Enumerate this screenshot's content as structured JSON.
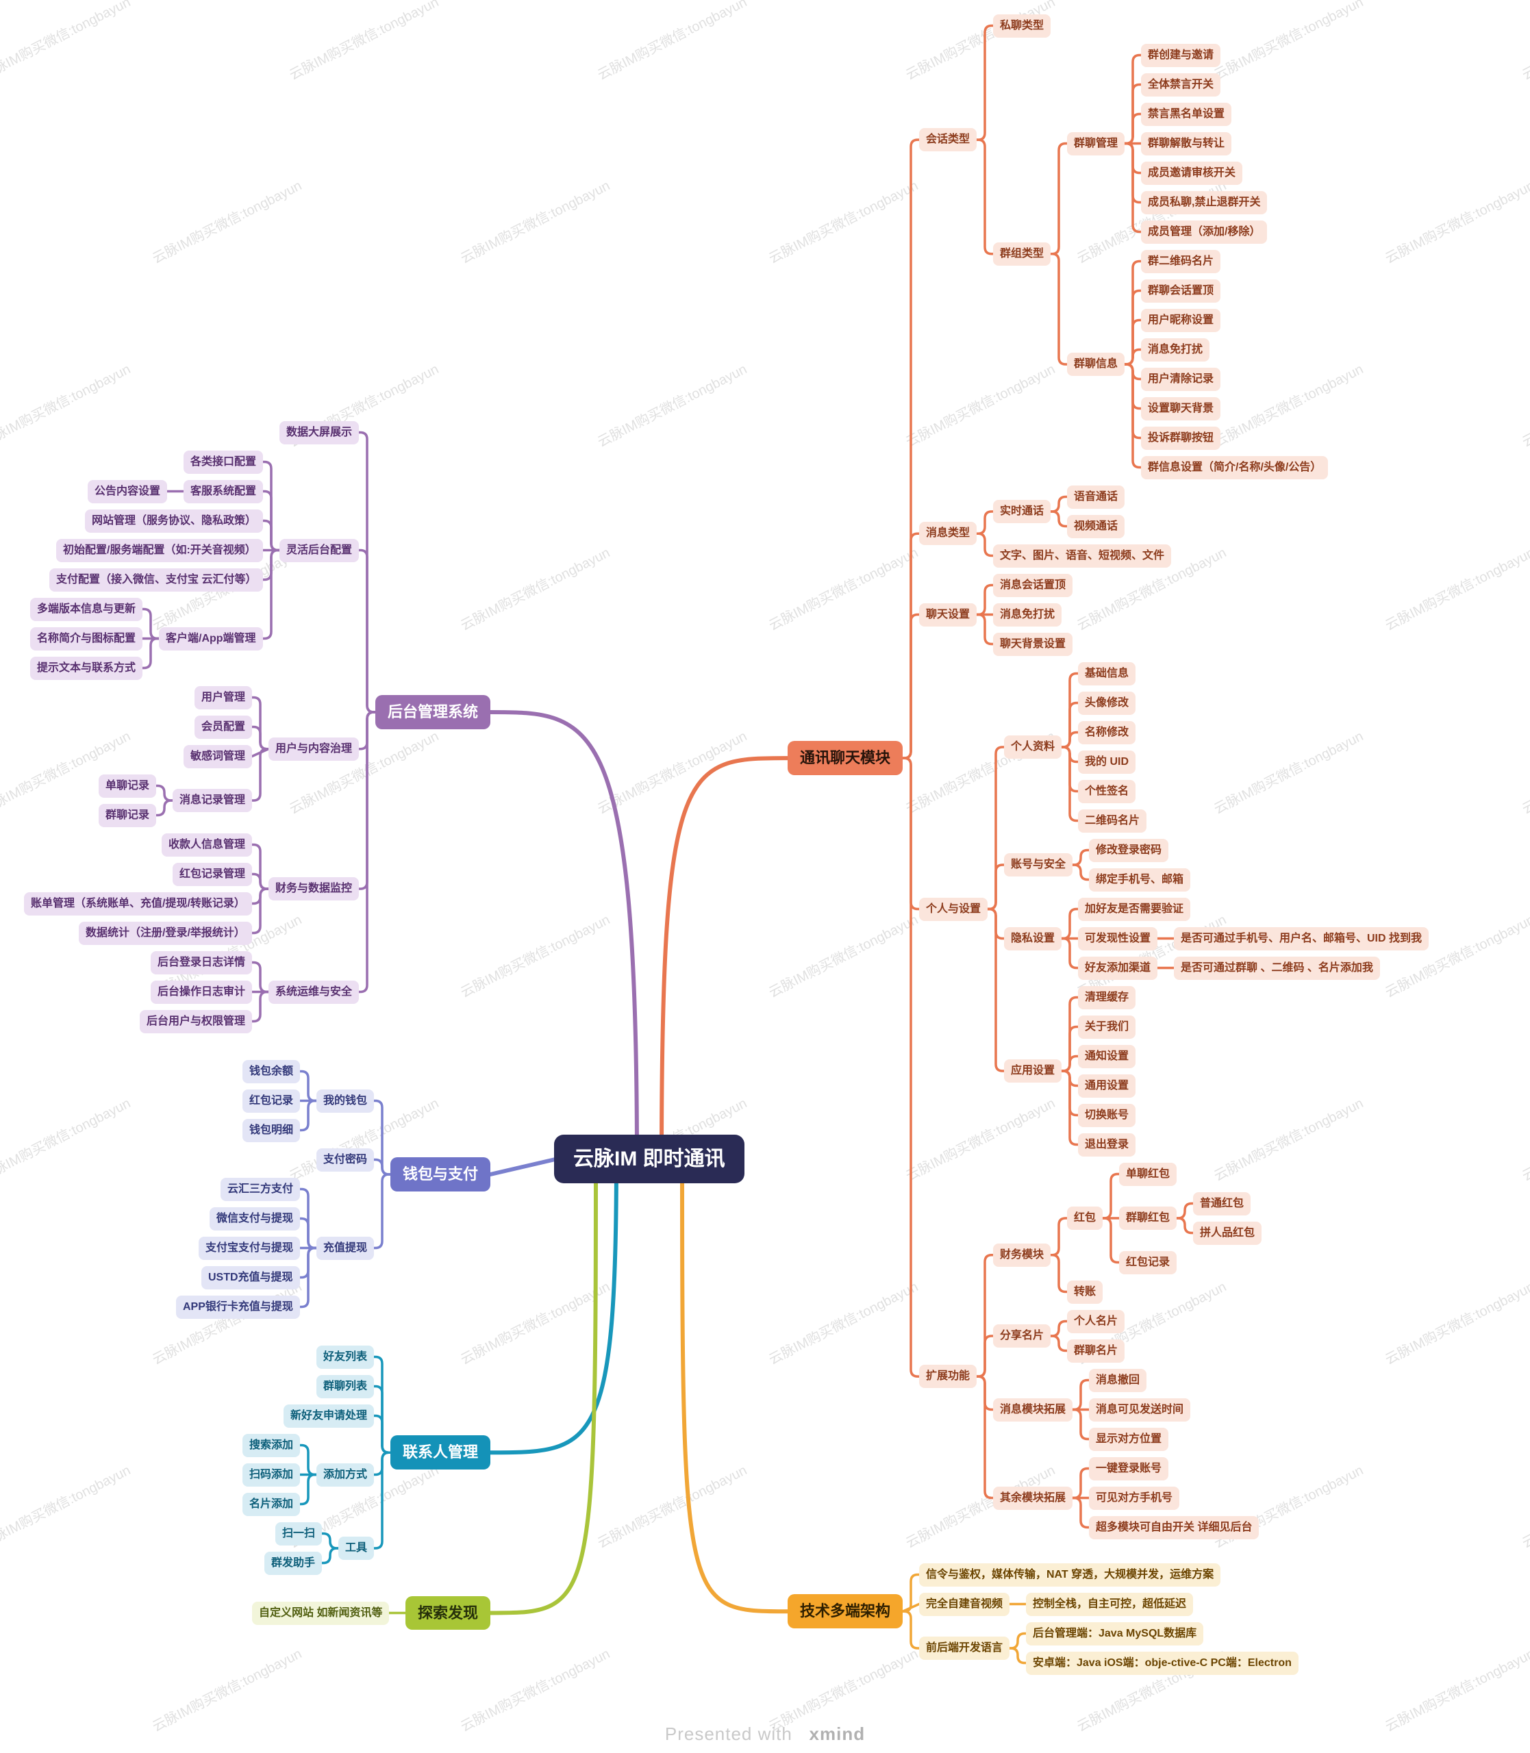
{
  "root": {
    "label": "云脉IM 即时通讯",
    "bg": "#2A2B55",
    "text": "#FFFFFF"
  },
  "watermark": {
    "text": "云脉IM购买微信:tongbayun"
  },
  "footer": {
    "presented_with": "Presented with",
    "brand": "xmind"
  },
  "branches": [
    {
      "label": "通讯聊天模块",
      "side": "right",
      "colors": {
        "line": "#E8764F",
        "node_bg": "#ED7D5A",
        "node_text": "#26130A",
        "leaf_bg": "#FBE5DC",
        "leaf_text": "#8C3B1C"
      },
      "children": [
        {
          "label": "会话类型",
          "children": [
            {
              "label": "私聊类型"
            },
            {
              "label": "群组类型",
              "children": [
                {
                  "label": "群聊管理",
                  "children": [
                    {
                      "label": "群创建与邀请"
                    },
                    {
                      "label": "全体禁言开关"
                    },
                    {
                      "label": "禁言黑名单设置"
                    },
                    {
                      "label": "群聊解散与转让"
                    },
                    {
                      "label": "成员邀请审核开关"
                    },
                    {
                      "label": "成员私聊,禁止退群开关"
                    },
                    {
                      "label": "成员管理（添加/移除）"
                    }
                  ]
                },
                {
                  "label": "群聊信息",
                  "children": [
                    {
                      "label": "群二维码名片"
                    },
                    {
                      "label": "群聊会话置顶"
                    },
                    {
                      "label": "用户昵称设置"
                    },
                    {
                      "label": "消息免打扰"
                    },
                    {
                      "label": "用户清除记录"
                    },
                    {
                      "label": "设置聊天背景"
                    },
                    {
                      "label": "投诉群聊按钮"
                    },
                    {
                      "label": "群信息设置（简介/名称/头像/公告）"
                    }
                  ]
                }
              ]
            }
          ]
        },
        {
          "label": "消息类型",
          "children": [
            {
              "label": "实时通话",
              "children": [
                {
                  "label": "语音通话"
                },
                {
                  "label": "视频通话"
                }
              ]
            },
            {
              "label": "文字、图片、语音、短视频、文件"
            }
          ]
        },
        {
          "label": "聊天设置",
          "children": [
            {
              "label": "消息会话置顶"
            },
            {
              "label": "消息免打扰"
            },
            {
              "label": "聊天背景设置"
            }
          ]
        },
        {
          "label": "个人与设置",
          "children": [
            {
              "label": "个人资料",
              "children": [
                {
                  "label": "基础信息"
                },
                {
                  "label": "头像修改"
                },
                {
                  "label": "名称修改"
                },
                {
                  "label": "我的 UID"
                },
                {
                  "label": "个性签名"
                },
                {
                  "label": "二维码名片"
                }
              ]
            },
            {
              "label": "账号与安全",
              "children": [
                {
                  "label": "修改登录密码"
                },
                {
                  "label": "绑定手机号、邮箱"
                }
              ]
            },
            {
              "label": "隐私设置",
              "children": [
                {
                  "label": "加好友是否需要验证"
                },
                {
                  "label": "可发现性设置",
                  "children": [
                    {
                      "label": "是否可通过手机号、用户名、邮箱号、UID 找到我"
                    }
                  ]
                },
                {
                  "label": "好友添加渠道",
                  "children": [
                    {
                      "label": "是否可通过群聊 、二维码 、名片添加我"
                    }
                  ]
                }
              ]
            },
            {
              "label": "应用设置",
              "children": [
                {
                  "label": "清理缓存"
                },
                {
                  "label": "关于我们"
                },
                {
                  "label": "通知设置"
                },
                {
                  "label": "通用设置"
                },
                {
                  "label": "切换账号"
                },
                {
                  "label": "退出登录"
                }
              ]
            }
          ]
        },
        {
          "label": "扩展功能",
          "children": [
            {
              "label": "财务模块",
              "children": [
                {
                  "label": "红包",
                  "children": [
                    {
                      "label": "单聊红包"
                    },
                    {
                      "label": "群聊红包",
                      "children": [
                        {
                          "label": "普通红包"
                        },
                        {
                          "label": "拼人品红包"
                        }
                      ]
                    },
                    {
                      "label": "红包记录"
                    }
                  ]
                },
                {
                  "label": "转账"
                }
              ]
            },
            {
              "label": "分享名片",
              "children": [
                {
                  "label": "个人名片"
                },
                {
                  "label": "群聊名片"
                }
              ]
            },
            {
              "label": "消息模块拓展",
              "children": [
                {
                  "label": "消息撤回"
                },
                {
                  "label": "消息可见发送时间"
                },
                {
                  "label": "显示对方位置"
                }
              ]
            },
            {
              "label": "其余模块拓展",
              "children": [
                {
                  "label": "一键登录账号"
                },
                {
                  "label": "可见对方手机号"
                },
                {
                  "label": "超多模块可自由开关 详细见后台"
                }
              ]
            }
          ]
        }
      ]
    },
    {
      "label": "技术多端架构",
      "side": "right",
      "colors": {
        "line": "#F1A636",
        "node_bg": "#F5A62B",
        "node_text": "#2E1F00",
        "leaf_bg": "#FBEFD4",
        "leaf_text": "#6B4400"
      },
      "children": [
        {
          "label": "信令与鉴权，媒体传输，NAT 穿透，大规模并发，运维方案"
        },
        {
          "label": "完全自建音视频",
          "children": [
            {
              "label": "控制全栈，自主可控，超低延迟"
            }
          ]
        },
        {
          "label": "前后端开发语言",
          "children": [
            {
              "label": "后台管理端：Java MySQL数据库"
            },
            {
              "label": "安卓端：Java iOS端：obje-ctive-C PC端：Electron"
            }
          ]
        }
      ]
    },
    {
      "label": "后台管理系统",
      "side": "left",
      "colors": {
        "line": "#9A6FB0",
        "node_bg": "#9A6FB0",
        "node_text": "#FFFFFF",
        "leaf_bg": "#ECDFF2",
        "leaf_text": "#58306F"
      },
      "children": [
        {
          "label": "数据大屏展示"
        },
        {
          "label": "灵活后台配置",
          "children": [
            {
              "label": "各类接口配置"
            },
            {
              "label": "客服系统配置",
              "children": [
                {
                  "label": "公告内容设置"
                }
              ]
            },
            {
              "label": "网站管理（服务协议、隐私政策）"
            },
            {
              "label": "初始配置/服务端配置（如:开关音视频）"
            },
            {
              "label": "支付配置（接入微信、支付宝 云汇付等）"
            },
            {
              "label": "客户端/App端管理",
              "children": [
                {
                  "label": "多端版本信息与更新"
                },
                {
                  "label": "名称简介与图标配置"
                },
                {
                  "label": "提示文本与联系方式"
                }
              ]
            }
          ]
        },
        {
          "label": "用户与内容治理",
          "children": [
            {
              "label": "用户管理"
            },
            {
              "label": "会员配置"
            },
            {
              "label": "敏感词管理"
            },
            {
              "label": "消息记录管理",
              "children": [
                {
                  "label": "单聊记录"
                },
                {
                  "label": "群聊记录"
                }
              ]
            }
          ]
        },
        {
          "label": "财务与数据监控",
          "children": [
            {
              "label": "收款人信息管理"
            },
            {
              "label": "红包记录管理"
            },
            {
              "label": "账单管理（系统账单、充值/提现/转账记录）"
            },
            {
              "label": "数据统计（注册/登录/举报统计）"
            }
          ]
        },
        {
          "label": "系统运维与安全",
          "children": [
            {
              "label": "后台登录日志详情"
            },
            {
              "label": "后台操作日志审计"
            },
            {
              "label": "后台用户与权限管理"
            }
          ]
        }
      ]
    },
    {
      "label": "钱包与支付",
      "side": "left",
      "colors": {
        "line": "#7A80CE",
        "node_bg": "#6F74C8",
        "node_text": "#FFFFFF",
        "leaf_bg": "#E3E5F6",
        "leaf_text": "#323879"
      },
      "children": [
        {
          "label": "我的钱包",
          "children": [
            {
              "label": "钱包余额"
            },
            {
              "label": "红包记录"
            },
            {
              "label": "钱包明细"
            }
          ]
        },
        {
          "label": "支付密码"
        },
        {
          "label": "充值提现",
          "children": [
            {
              "label": "云汇三方支付"
            },
            {
              "label": "微信支付与提现"
            },
            {
              "label": "支付宝支付与提现"
            },
            {
              "label": "USTD充值与提现"
            },
            {
              "label": "APP银行卡充值与提现"
            }
          ]
        }
      ]
    },
    {
      "label": "联系人管理",
      "side": "left",
      "colors": {
        "line": "#1897BB",
        "node_bg": "#1492B8",
        "node_text": "#FFFFFF",
        "leaf_bg": "#D7ECF4",
        "leaf_text": "#0C5E79"
      },
      "children": [
        {
          "label": "好友列表"
        },
        {
          "label": "群聊列表"
        },
        {
          "label": "新好友申请处理"
        },
        {
          "label": "添加方式",
          "children": [
            {
              "label": "搜索添加"
            },
            {
              "label": "扫码添加"
            },
            {
              "label": "名片添加"
            }
          ]
        },
        {
          "label": "工具",
          "children": [
            {
              "label": "扫一扫"
            },
            {
              "label": "群发助手"
            }
          ]
        }
      ]
    },
    {
      "label": "探索发现",
      "side": "left",
      "colors": {
        "line": "#A9C43A",
        "node_bg": "#A8C636",
        "node_text": "#26300A",
        "leaf_bg": "#F2F5DA",
        "leaf_text": "#515F10"
      },
      "children": [
        {
          "label": "自定义网站 如新闻资讯等"
        }
      ]
    }
  ]
}
